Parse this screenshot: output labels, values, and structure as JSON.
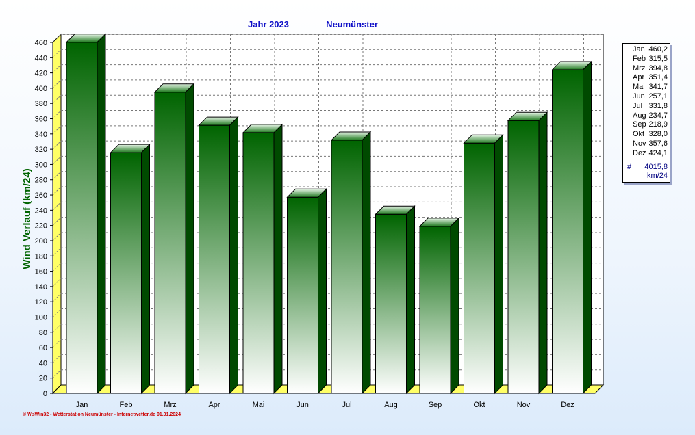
{
  "chart_data": {
    "type": "bar",
    "title": "Jahr  2023",
    "station": "Neumünster",
    "ylabel": "Wind Verlauf  (km/24)",
    "xlabel": "",
    "ylim": [
      0,
      460
    ],
    "yticks": [
      0,
      20,
      40,
      60,
      80,
      100,
      120,
      140,
      160,
      180,
      200,
      220,
      240,
      260,
      280,
      300,
      320,
      340,
      360,
      380,
      400,
      420,
      440,
      460
    ],
    "grid": true,
    "legend_position": "right",
    "categories": [
      "Jan",
      "Feb",
      "Mrz",
      "Apr",
      "Mai",
      "Jun",
      "Jul",
      "Aug",
      "Sep",
      "Okt",
      "Nov",
      "Dez"
    ],
    "values": [
      460.2,
      315.5,
      394.8,
      351.4,
      341.7,
      257.1,
      331.8,
      234.7,
      218.9,
      328.0,
      357.6,
      424.1
    ],
    "value_labels": [
      "460,2",
      "315,5",
      "394,8",
      "351,4",
      "341,7",
      "257,1",
      "331,8",
      "234,7",
      "218,9",
      "328,0",
      "357,6",
      "424,1"
    ],
    "total_symbol": "#",
    "total": "4015,8",
    "unit": "km/24",
    "colors": {
      "bar_dark": "#006400",
      "bar_light": "#ffffff",
      "bar_top": "#2e8b2e",
      "bar_side": "#004a00",
      "base": "#ffff66",
      "title": "#1010c8",
      "ylabel": "#006400"
    }
  },
  "footer": "© WsWin32 - Wetterstation Neumünster - Internetwetter.de  01.01.2024"
}
